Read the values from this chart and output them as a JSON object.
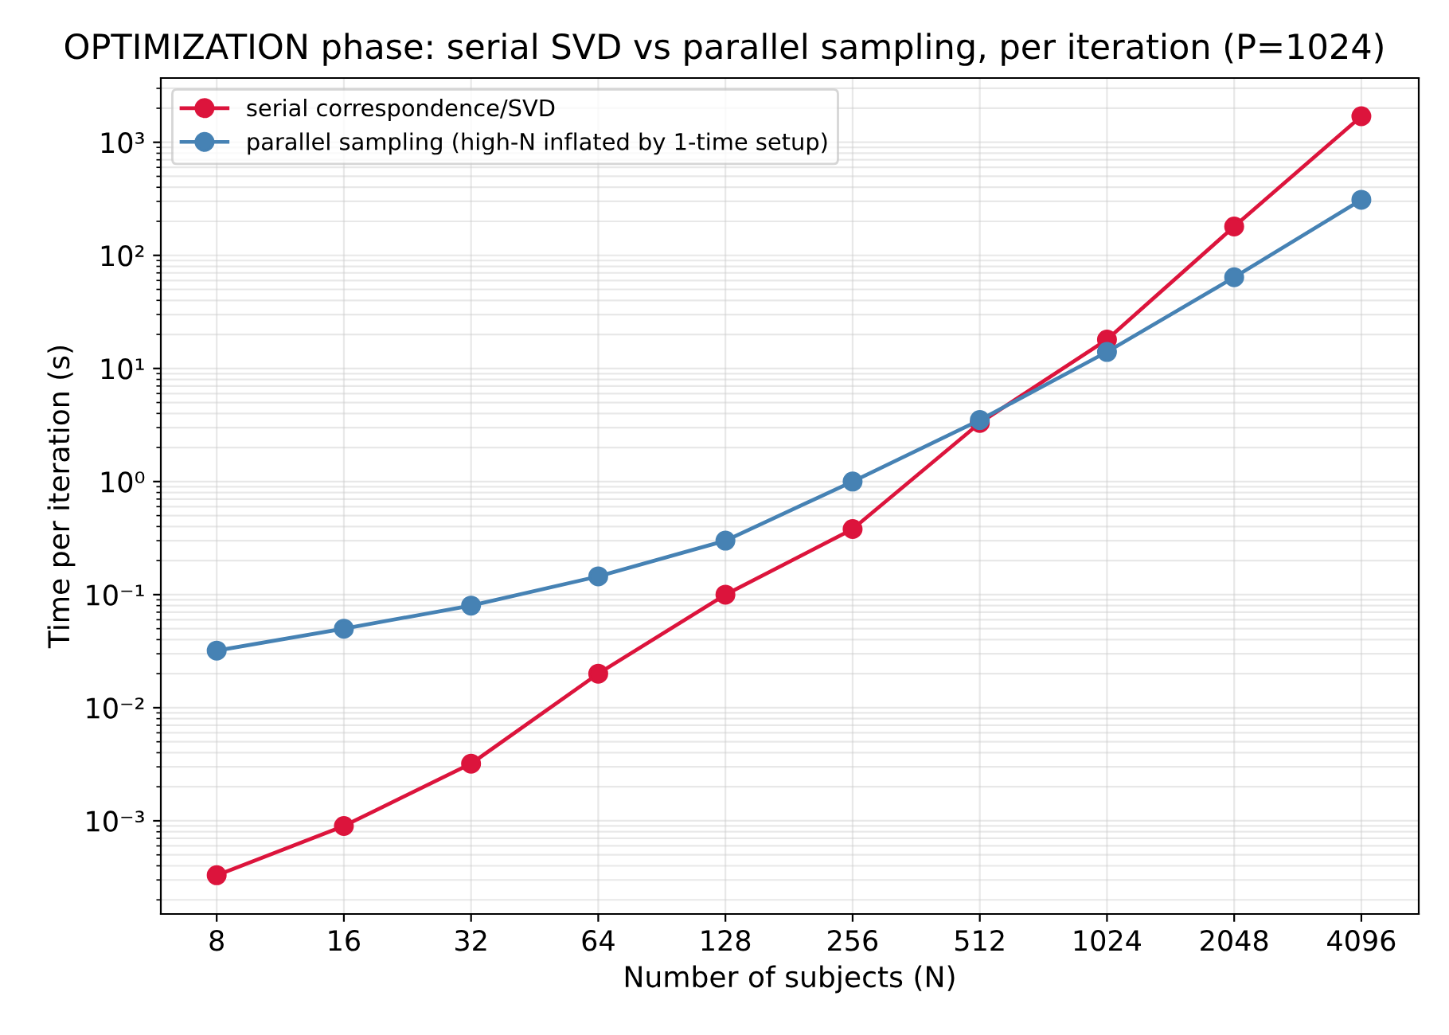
{
  "chart_data": {
    "type": "line",
    "title": "OPTIMIZATION phase: serial SVD vs parallel sampling, per iteration (P=1024)",
    "xlabel": "Number of subjects (N)",
    "ylabel": "Time per iteration (s)",
    "x": [
      8,
      16,
      32,
      64,
      128,
      256,
      512,
      1024,
      2048,
      4096
    ],
    "series": [
      {
        "name": "serial correspondence/SVD",
        "color": "#dc143c",
        "values": [
          0.00033,
          0.0009,
          0.0032,
          0.02,
          0.1,
          0.38,
          3.3,
          18,
          180,
          1700
        ]
      },
      {
        "name": "parallel sampling (high-N inflated by 1-time setup)",
        "color": "#4682b4",
        "values": [
          0.032,
          0.05,
          0.08,
          0.145,
          0.3,
          1.0,
          3.5,
          14,
          64,
          310
        ]
      }
    ],
    "log": "xy",
    "xlim": [
      5.9,
      5600
    ],
    "xticks": [
      8,
      16,
      32,
      64,
      128,
      256,
      512,
      1024,
      2048,
      4096
    ],
    "ylim": [
      0.00015,
      3700
    ],
    "yticks": [
      {
        "value": 0.001,
        "label": "10⁻³"
      },
      {
        "value": 0.01,
        "label": "10⁻²"
      },
      {
        "value": 0.1,
        "label": "10⁻¹"
      },
      {
        "value": 1,
        "label": "10⁰"
      },
      {
        "value": 10,
        "label": "10¹"
      },
      {
        "value": 100,
        "label": "10²"
      },
      {
        "value": 1000,
        "label": "10³"
      }
    ],
    "grid": true,
    "legend": "top left",
    "marker": "circle",
    "line_style": "solid"
  }
}
